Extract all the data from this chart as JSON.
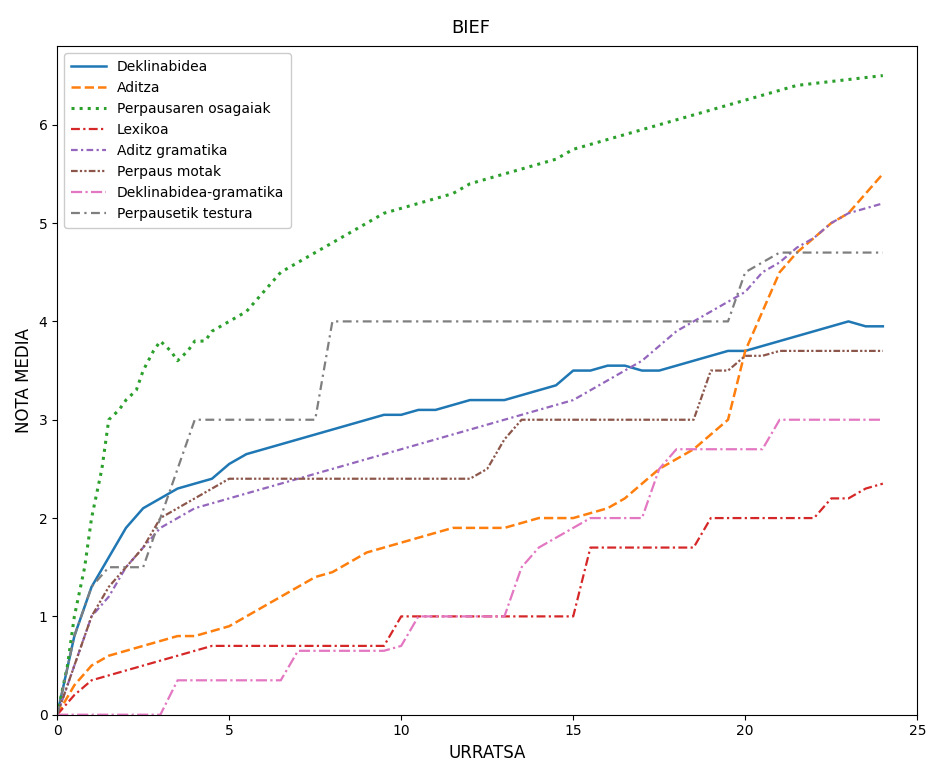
{
  "title_text": "BIEF",
  "xlabel": "URRATSA",
  "ylabel": "NOTA MEDIA",
  "xlim": [
    0,
    25
  ],
  "ylim": [
    0,
    6.8
  ],
  "series": [
    {
      "name": "Deklinabidea",
      "color": "#1f77b4",
      "linestyle": "-",
      "linewidth": 1.8,
      "x": [
        0,
        0.5,
        1,
        1.5,
        2,
        2.5,
        3,
        3.5,
        4,
        4.5,
        5,
        5.5,
        6,
        6.5,
        7,
        7.5,
        8,
        8.5,
        9,
        9.5,
        10,
        10.5,
        11,
        11.5,
        12,
        12.5,
        13,
        13.5,
        14,
        14.5,
        15,
        15.5,
        16,
        16.5,
        17,
        17.5,
        18,
        18.5,
        19,
        19.5,
        20,
        20.5,
        21,
        21.5,
        22,
        22.5,
        23,
        23.5,
        24
      ],
      "y": [
        0,
        0.8,
        1.3,
        1.6,
        1.9,
        2.1,
        2.2,
        2.3,
        2.35,
        2.4,
        2.55,
        2.65,
        2.7,
        2.75,
        2.8,
        2.85,
        2.9,
        2.95,
        3.0,
        3.05,
        3.05,
        3.1,
        3.1,
        3.15,
        3.2,
        3.2,
        3.2,
        3.25,
        3.3,
        3.35,
        3.5,
        3.5,
        3.55,
        3.55,
        3.5,
        3.5,
        3.55,
        3.6,
        3.65,
        3.7,
        3.7,
        3.75,
        3.8,
        3.85,
        3.9,
        3.95,
        4.0,
        3.95,
        3.95
      ]
    },
    {
      "name": "Aditza",
      "color": "#ff7f0e",
      "linestyle": "--",
      "linewidth": 1.8,
      "x": [
        0,
        0.5,
        1,
        1.5,
        2,
        2.5,
        3,
        3.5,
        4,
        4.5,
        5,
        5.5,
        6,
        6.5,
        7,
        7.5,
        8,
        8.5,
        9,
        9.5,
        10,
        10.5,
        11,
        11.5,
        12,
        12.5,
        13,
        13.5,
        14,
        14.5,
        15,
        15.5,
        16,
        16.5,
        17,
        17.5,
        18,
        18.5,
        19,
        19.5,
        20,
        20.5,
        21,
        21.5,
        22,
        22.5,
        23,
        23.5,
        24
      ],
      "y": [
        0,
        0.3,
        0.5,
        0.6,
        0.65,
        0.7,
        0.75,
        0.8,
        0.8,
        0.85,
        0.9,
        1.0,
        1.1,
        1.2,
        1.3,
        1.4,
        1.45,
        1.55,
        1.65,
        1.7,
        1.75,
        1.8,
        1.85,
        1.9,
        1.9,
        1.9,
        1.9,
        1.95,
        2.0,
        2.0,
        2.0,
        2.05,
        2.1,
        2.2,
        2.35,
        2.5,
        2.6,
        2.7,
        2.85,
        3.0,
        3.7,
        4.1,
        4.5,
        4.7,
        4.85,
        5.0,
        5.1,
        5.3,
        5.5
      ]
    },
    {
      "name": "Perpausaren osagaiak",
      "color": "#2ca02c",
      "linestyle": ":",
      "linewidth": 2.2,
      "x": [
        0,
        0.3,
        0.5,
        0.8,
        1.0,
        1.3,
        1.5,
        1.8,
        2.0,
        2.3,
        2.5,
        2.8,
        3.0,
        3.3,
        3.5,
        3.8,
        4.0,
        4.3,
        4.5,
        5.0,
        5.5,
        6.0,
        6.5,
        7.0,
        7.5,
        8.0,
        8.5,
        9.0,
        9.5,
        10.0,
        10.5,
        11.0,
        11.5,
        12.0,
        12.5,
        13.0,
        13.5,
        14.0,
        14.5,
        15.0,
        15.5,
        16.0,
        16.5,
        17.0,
        17.5,
        18.0,
        18.5,
        19.0,
        19.5,
        20.0,
        20.5,
        21.0,
        21.5,
        22.0,
        22.5,
        23.0,
        23.5,
        24.0
      ],
      "y": [
        0,
        0.5,
        1.0,
        1.5,
        2.0,
        2.5,
        3.0,
        3.1,
        3.2,
        3.3,
        3.5,
        3.7,
        3.8,
        3.7,
        3.6,
        3.7,
        3.8,
        3.8,
        3.9,
        4.0,
        4.1,
        4.3,
        4.5,
        4.6,
        4.7,
        4.8,
        4.9,
        5.0,
        5.1,
        5.15,
        5.2,
        5.25,
        5.3,
        5.4,
        5.45,
        5.5,
        5.55,
        5.6,
        5.65,
        5.75,
        5.8,
        5.85,
        5.9,
        5.95,
        6.0,
        6.05,
        6.1,
        6.15,
        6.2,
        6.25,
        6.3,
        6.35,
        6.4,
        6.42,
        6.44,
        6.46,
        6.48,
        6.5
      ]
    },
    {
      "name": "Lexikoa",
      "color": "#d62728",
      "linestyle": "--",
      "linewidth": 1.5,
      "dash_style": [
        5,
        2,
        1,
        2
      ],
      "x": [
        0,
        0.5,
        1,
        1.5,
        2,
        2.5,
        3,
        3.5,
        4,
        4.5,
        5,
        5.5,
        6,
        6.5,
        7,
        7.5,
        8,
        8.5,
        9,
        9.5,
        10,
        10.5,
        11,
        11.5,
        12,
        12.5,
        13,
        13.5,
        14,
        14.5,
        15,
        15.5,
        16,
        16.5,
        17,
        17.5,
        18,
        18.5,
        19,
        19.5,
        20,
        20.5,
        21,
        21.5,
        22,
        22.5,
        23,
        23.5,
        24
      ],
      "y": [
        0,
        0.2,
        0.35,
        0.4,
        0.45,
        0.5,
        0.55,
        0.6,
        0.65,
        0.7,
        0.7,
        0.7,
        0.7,
        0.7,
        0.7,
        0.7,
        0.7,
        0.7,
        0.7,
        0.7,
        1.0,
        1.0,
        1.0,
        1.0,
        1.0,
        1.0,
        1.0,
        1.0,
        1.0,
        1.0,
        1.0,
        1.7,
        1.7,
        1.7,
        1.7,
        1.7,
        1.7,
        1.7,
        2.0,
        2.0,
        2.0,
        2.0,
        2.0,
        2.0,
        2.0,
        2.2,
        2.2,
        2.3,
        2.35
      ]
    },
    {
      "name": "Aditz gramatika",
      "color": "#9467bd",
      "linestyle": "-.",
      "linewidth": 1.5,
      "x": [
        0,
        0.5,
        1,
        1.5,
        2,
        2.5,
        3,
        3.5,
        4,
        4.5,
        5,
        5.5,
        6,
        6.5,
        7,
        7.5,
        8,
        8.5,
        9,
        9.5,
        10,
        10.5,
        11,
        11.5,
        12,
        12.5,
        13,
        13.5,
        14,
        14.5,
        15,
        15.5,
        16,
        16.5,
        17,
        17.5,
        18,
        18.5,
        19,
        19.5,
        20,
        20.5,
        21,
        21.5,
        22,
        22.5,
        23,
        23.5,
        24
      ],
      "y": [
        0,
        0.5,
        1.0,
        1.2,
        1.5,
        1.7,
        1.9,
        2.0,
        2.1,
        2.15,
        2.2,
        2.25,
        2.3,
        2.35,
        2.4,
        2.45,
        2.5,
        2.55,
        2.6,
        2.65,
        2.7,
        2.75,
        2.8,
        2.85,
        2.9,
        2.95,
        3.0,
        3.05,
        3.1,
        3.15,
        3.2,
        3.3,
        3.4,
        3.5,
        3.6,
        3.75,
        3.9,
        4.0,
        4.1,
        4.2,
        4.3,
        4.5,
        4.6,
        4.75,
        4.85,
        5.0,
        5.1,
        5.15,
        5.2
      ]
    },
    {
      "name": "Perpaus motak",
      "color": "#8c564b",
      "linestyle": "-.",
      "linewidth": 1.5,
      "x": [
        0,
        0.5,
        1,
        1.5,
        2,
        2.5,
        3,
        3.5,
        4,
        4.5,
        5,
        5.5,
        6,
        6.5,
        7,
        7.5,
        8,
        8.5,
        9,
        9.5,
        10,
        10.5,
        11,
        11.5,
        12,
        12.5,
        13,
        13.5,
        14,
        14.5,
        15,
        15.5,
        16,
        16.5,
        17,
        17.5,
        18,
        18.5,
        19,
        19.5,
        20,
        20.5,
        21,
        21.5,
        22,
        22.5,
        23,
        23.5,
        24
      ],
      "y": [
        0,
        0.5,
        1.0,
        1.3,
        1.5,
        1.7,
        2.0,
        2.1,
        2.2,
        2.3,
        2.4,
        2.4,
        2.4,
        2.4,
        2.4,
        2.4,
        2.4,
        2.4,
        2.4,
        2.4,
        2.4,
        2.4,
        2.4,
        2.4,
        2.4,
        2.5,
        2.8,
        3.0,
        3.0,
        3.0,
        3.0,
        3.0,
        3.0,
        3.0,
        3.0,
        3.0,
        3.0,
        3.0,
        3.5,
        3.5,
        3.65,
        3.65,
        3.7,
        3.7,
        3.7,
        3.7,
        3.7,
        3.7,
        3.7
      ]
    },
    {
      "name": "Deklinabidea-gramatika",
      "color": "#e377c2",
      "linestyle": "-.",
      "linewidth": 1.5,
      "x": [
        0,
        0.5,
        1,
        1.5,
        2,
        2.5,
        3,
        3.5,
        4,
        4.5,
        5,
        5.5,
        6,
        6.5,
        7,
        7.5,
        8,
        8.5,
        9,
        9.5,
        10,
        10.5,
        11,
        11.5,
        12,
        12.5,
        13,
        13.5,
        14,
        14.5,
        15,
        15.5,
        16,
        16.5,
        17,
        17.5,
        18,
        18.5,
        19,
        19.5,
        20,
        20.5,
        21,
        21.5,
        22,
        22.5,
        23,
        23.5,
        24
      ],
      "y": [
        0,
        0.0,
        0.0,
        0.0,
        0.0,
        0.0,
        0.0,
        0.35,
        0.35,
        0.35,
        0.35,
        0.35,
        0.35,
        0.35,
        0.65,
        0.65,
        0.65,
        0.65,
        0.65,
        0.65,
        0.7,
        1.0,
        1.0,
        1.0,
        1.0,
        1.0,
        1.0,
        1.5,
        1.7,
        1.8,
        1.9,
        2.0,
        2.0,
        2.0,
        2.0,
        2.5,
        2.7,
        2.7,
        2.7,
        2.7,
        2.7,
        2.7,
        3.0,
        3.0,
        3.0,
        3.0,
        3.0,
        3.0,
        3.0
      ]
    },
    {
      "name": "Perpausetik testura",
      "color": "#7f7f7f",
      "linestyle": "-.",
      "linewidth": 1.5,
      "x": [
        0,
        0.5,
        1,
        1.5,
        2,
        2.5,
        3,
        3.5,
        4,
        4.5,
        5,
        5.5,
        6,
        6.5,
        7,
        7.5,
        8,
        8.5,
        9,
        9.5,
        10,
        10.5,
        11,
        11.5,
        12,
        12.5,
        13,
        13.5,
        14,
        14.5,
        15,
        15.5,
        16,
        16.5,
        17,
        17.5,
        18,
        18.5,
        19,
        19.5,
        20,
        20.5,
        21,
        21.5,
        22,
        22.5,
        23,
        23.5,
        24
      ],
      "y": [
        0,
        0.8,
        1.3,
        1.5,
        1.5,
        1.5,
        2.0,
        2.5,
        3.0,
        3.0,
        3.0,
        3.0,
        3.0,
        3.0,
        3.0,
        3.0,
        4.0,
        4.0,
        4.0,
        4.0,
        4.0,
        4.0,
        4.0,
        4.0,
        4.0,
        4.0,
        4.0,
        4.0,
        4.0,
        4.0,
        4.0,
        4.0,
        4.0,
        4.0,
        4.0,
        4.0,
        4.0,
        4.0,
        4.0,
        4.0,
        4.5,
        4.6,
        4.7,
        4.7,
        4.7,
        4.7,
        4.7,
        4.7,
        4.7
      ]
    }
  ],
  "legend_entries": [
    {
      "name": "Deklinabidea",
      "color": "#1f77b4",
      "linestyle": "-",
      "linewidth": 1.8
    },
    {
      "name": "Aditza",
      "color": "#ff7f0e",
      "linestyle": "--",
      "linewidth": 1.8
    },
    {
      "name": "Perpausaren osagaiak",
      "color": "#2ca02c",
      "linestyle": ":",
      "linewidth": 2.2
    },
    {
      "name": "Lexikoa",
      "color": "#d62728",
      "linestyle": "--",
      "linewidth": 1.5
    },
    {
      "name": "Aditz gramatika",
      "color": "#9467bd",
      "linestyle": "-.",
      "linewidth": 1.5
    },
    {
      "name": "Perpaus motak",
      "color": "#8c564b",
      "linestyle": "-.",
      "linewidth": 1.5
    },
    {
      "name": "Deklinabidea-gramatika",
      "color": "#e377c2",
      "linestyle": "-.",
      "linewidth": 1.5
    },
    {
      "name": "Perpausetik testura",
      "color": "#7f7f7f",
      "linestyle": "-.",
      "linewidth": 1.5
    }
  ]
}
